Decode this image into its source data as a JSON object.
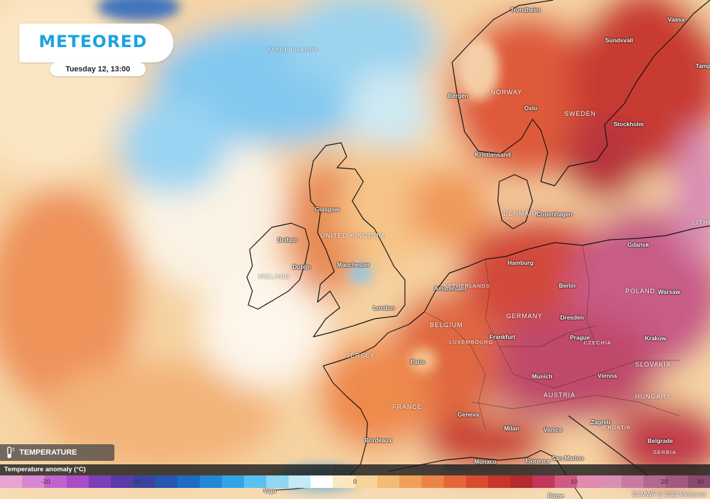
{
  "brand": "METEORED",
  "datetime": "Tuesday 12, 13:00",
  "layer_label": "TEMPERATURE ANOMALY",
  "legend": {
    "title": "Temperature anomaly (°C)",
    "ticks": [
      "-20",
      "-10",
      "0",
      "10",
      "20",
      "30"
    ],
    "colors": [
      "#e7a4d2",
      "#d886cf",
      "#c262cd",
      "#a94cc8",
      "#7c3fb8",
      "#5a3aa8",
      "#3a44a0",
      "#2557b0",
      "#1b6cc4",
      "#2486d6",
      "#33a4e6",
      "#5cc0ef",
      "#8fd7f3",
      "#c3eaf6",
      "#ffffff",
      "#fbe7c0",
      "#f7d39a",
      "#f4bb76",
      "#f1a05a",
      "#ec8446",
      "#e4673a",
      "#d74c30",
      "#c9352c",
      "#b52a2e",
      "#c0385a",
      "#cf5a84",
      "#e08ab0",
      "#d98fb3",
      "#c97aa2",
      "#b3688f",
      "#a25a80",
      "#8a4a70"
    ]
  },
  "credit": "ECMWF © 2023 Meteored",
  "cities": [
    {
      "name": "Trondheim",
      "id": "trondheim"
    },
    {
      "name": "Vaasa",
      "id": "vaasa"
    },
    {
      "name": "Sundsvall",
      "id": "sundsvall"
    },
    {
      "name": "Bergen",
      "id": "bergen"
    },
    {
      "name": "Oslo",
      "id": "oslo"
    },
    {
      "name": "Stockholm",
      "id": "stockholm"
    },
    {
      "name": "Kristiansand",
      "id": "kristiansand"
    },
    {
      "name": "Copenhagen",
      "id": "copenhagen"
    },
    {
      "name": "Glasgow",
      "id": "glasgow"
    },
    {
      "name": "Belfast",
      "id": "belfast"
    },
    {
      "name": "Dublin",
      "id": "dublin"
    },
    {
      "name": "Manchester",
      "id": "manchester"
    },
    {
      "name": "Gdansk",
      "id": "gdansk"
    },
    {
      "name": "Hamburg",
      "id": "hamburg"
    },
    {
      "name": "Amsterdam",
      "id": "amsterdam"
    },
    {
      "name": "Berlin",
      "id": "berlin"
    },
    {
      "name": "Warsaw",
      "id": "warsaw"
    },
    {
      "name": "London",
      "id": "london"
    },
    {
      "name": "Dresden",
      "id": "dresden"
    },
    {
      "name": "Frankfurt",
      "id": "frankfurt"
    },
    {
      "name": "Prague",
      "id": "prague"
    },
    {
      "name": "Krakow",
      "id": "krakow"
    },
    {
      "name": "Paris",
      "id": "paris"
    },
    {
      "name": "Munich",
      "id": "munich"
    },
    {
      "name": "Vienna",
      "id": "vienna"
    },
    {
      "name": "Geneva",
      "id": "geneva"
    },
    {
      "name": "Zagreb",
      "id": "zagreb"
    },
    {
      "name": "Milan",
      "id": "milan"
    },
    {
      "name": "Venice",
      "id": "venice"
    },
    {
      "name": "Belgrade",
      "id": "belgrade"
    },
    {
      "name": "Bordeaux",
      "id": "bordeaux"
    },
    {
      "name": "Bilbao",
      "id": "bilbao"
    },
    {
      "name": "Marseille",
      "id": "marseille"
    },
    {
      "name": "Monaco",
      "id": "monaco"
    },
    {
      "name": "Florence",
      "id": "florence"
    },
    {
      "name": "San Marino",
      "id": "san-marino"
    },
    {
      "name": "Vigo",
      "id": "vigo"
    },
    {
      "name": "Rome",
      "id": "rome"
    },
    {
      "name": "Tamp",
      "id": "tampere"
    }
  ],
  "countries": [
    {
      "name": "FAROE ISLANDS",
      "id": "faroe-islands"
    },
    {
      "name": "NORWAY",
      "id": "norway"
    },
    {
      "name": "SWEDEN",
      "id": "sweden"
    },
    {
      "name": "DENMARK",
      "id": "denmark"
    },
    {
      "name": "UNITED KINGDOM",
      "id": "united-kingdom"
    },
    {
      "name": "IRELAND",
      "id": "ireland"
    },
    {
      "name": "NETHERLANDS",
      "id": "netherlands"
    },
    {
      "name": "POLAND",
      "id": "poland"
    },
    {
      "name": "GERMANY",
      "id": "germany"
    },
    {
      "name": "BELGIUM",
      "id": "belgium"
    },
    {
      "name": "LUXEMBOURG",
      "id": "luxembourg"
    },
    {
      "name": "CZECHIA",
      "id": "czechia"
    },
    {
      "name": "JERSEY",
      "id": "jersey"
    },
    {
      "name": "SLOVAKIA",
      "id": "slovakia"
    },
    {
      "name": "AUSTRIA",
      "id": "austria"
    },
    {
      "name": "HUNGARY",
      "id": "hungary"
    },
    {
      "name": "FRANCE",
      "id": "france"
    },
    {
      "name": "CROATIA",
      "id": "croatia"
    },
    {
      "name": "SERBIA",
      "id": "serbia"
    },
    {
      "name": "LITHU",
      "id": "lithuania"
    }
  ]
}
